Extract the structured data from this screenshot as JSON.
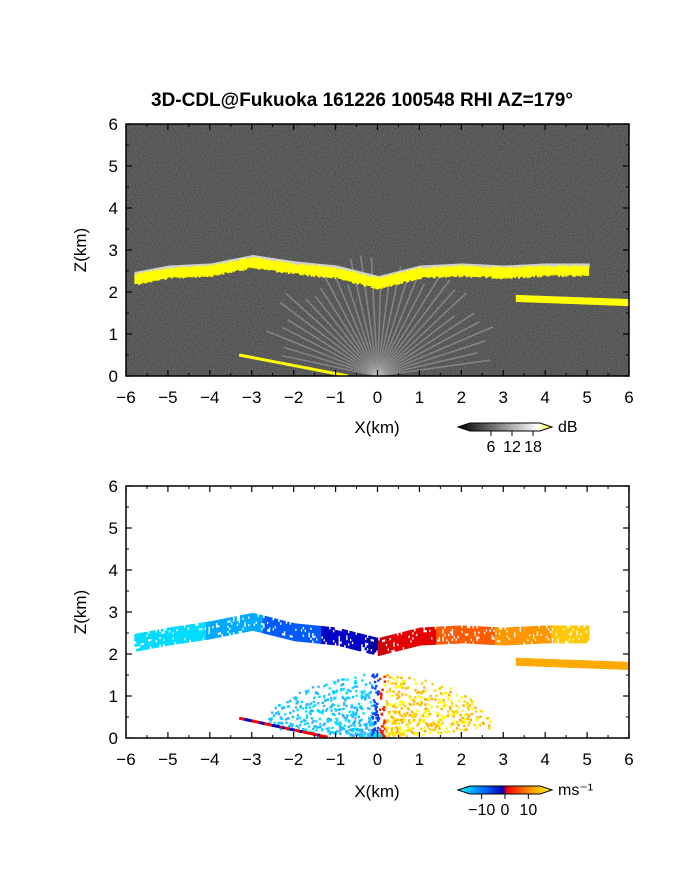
{
  "title": "3D-CDL@Fukuoka 161226 100548 RHI AZ=179°",
  "chart_data": [
    {
      "type": "heatmap",
      "quantity": "backscatter",
      "xlabel": "X(km)",
      "ylabel": "Z(km)",
      "xlim": [
        -6,
        6
      ],
      "ylim": [
        0,
        6
      ],
      "xticks": [
        "−6",
        "−5",
        "−4",
        "−3",
        "−2",
        "−1",
        "0",
        "1",
        "2",
        "3",
        "4",
        "5",
        "6"
      ],
      "yticks": [
        "0",
        "1",
        "2",
        "3",
        "4",
        "5",
        "6"
      ],
      "colorbar": {
        "unit": "dB",
        "ticks": [
          "6",
          "12",
          "18"
        ],
        "range": [
          0,
          20
        ],
        "colors": [
          "#000000",
          "#ffffff",
          "#ffff00"
        ]
      },
      "cloud_layer": [
        [
          -5.8,
          2.3
        ],
        [
          -5,
          2.45
        ],
        [
          -4,
          2.5
        ],
        [
          -3,
          2.7
        ],
        [
          -2,
          2.55
        ],
        [
          -1,
          2.45
        ],
        [
          0,
          2.2
        ],
        [
          1,
          2.45
        ],
        [
          2,
          2.5
        ],
        [
          3,
          2.45
        ],
        [
          4,
          2.5
        ],
        [
          5,
          2.5
        ]
      ],
      "cloud_color": "#ffff00",
      "second_layer": [
        [
          3.3,
          1.85
        ],
        [
          6,
          1.75
        ]
      ],
      "ground_echo": [
        [
          -3.3,
          0.5
        ],
        [
          -0.7,
          0.0
        ]
      ]
    },
    {
      "type": "heatmap",
      "quantity": "doppler velocity",
      "xlabel": "X(km)",
      "ylabel": "Z(km)",
      "xlim": [
        -6,
        6
      ],
      "ylim": [
        0,
        6
      ],
      "xticks": [
        "−6",
        "−5",
        "−4",
        "−3",
        "−2",
        "−1",
        "0",
        "1",
        "2",
        "3",
        "4",
        "5",
        "6"
      ],
      "yticks": [
        "0",
        "1",
        "2",
        "3",
        "4",
        "5",
        "6"
      ],
      "colorbar": {
        "unit": "ms⁻¹",
        "ticks": [
          "−10",
          "0",
          "10"
        ],
        "range": [
          -15,
          15
        ],
        "colors": [
          "#00ffff",
          "#0050ff",
          "#0000c8",
          "#ff0000",
          "#ff8000",
          "#ffff00"
        ]
      },
      "cloud_layer": [
        [
          -5.8,
          2.3
        ],
        [
          -5,
          2.45
        ],
        [
          -4,
          2.6
        ],
        [
          -3,
          2.8
        ],
        [
          -2,
          2.55
        ],
        [
          -1,
          2.45
        ],
        [
          0,
          2.2
        ],
        [
          1,
          2.45
        ],
        [
          2,
          2.5
        ],
        [
          3,
          2.45
        ],
        [
          4,
          2.5
        ],
        [
          5,
          2.5
        ]
      ],
      "velocity_range": [
        -15,
        15
      ],
      "second_layer": [
        [
          3.3,
          1.85
        ],
        [
          6,
          1.75
        ]
      ]
    }
  ]
}
